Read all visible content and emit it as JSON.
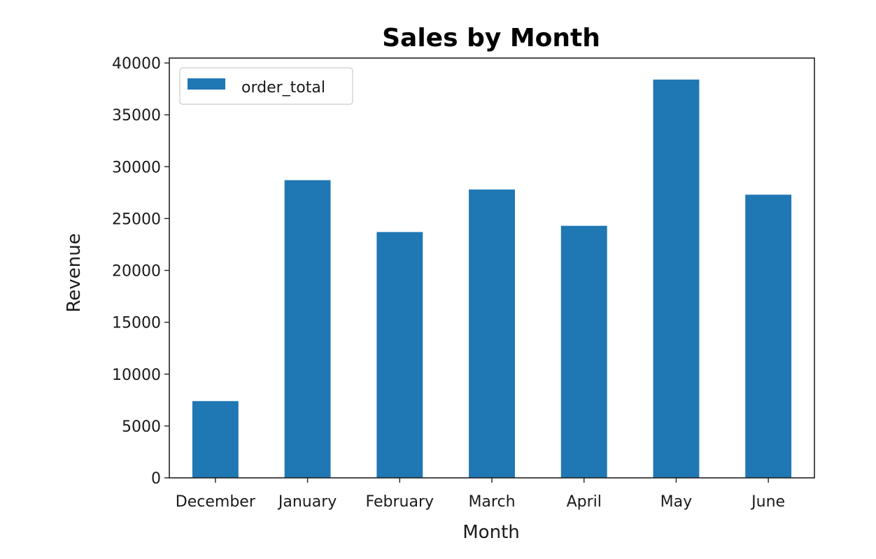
{
  "chart_data": {
    "type": "bar",
    "title": "Sales by Month",
    "xlabel": "Month",
    "ylabel": "Revenue",
    "categories": [
      "December",
      "January",
      "February",
      "March",
      "April",
      "May",
      "June"
    ],
    "series": [
      {
        "name": "order_total",
        "color": "#1f77b4",
        "values": [
          7400,
          28700,
          23700,
          27800,
          24300,
          38400,
          27300
        ]
      }
    ],
    "ylim": [
      0,
      40000
    ],
    "yticks": [
      0,
      5000,
      10000,
      15000,
      20000,
      25000,
      30000,
      35000,
      40000
    ],
    "grid": false,
    "legend_position": "top-left"
  }
}
